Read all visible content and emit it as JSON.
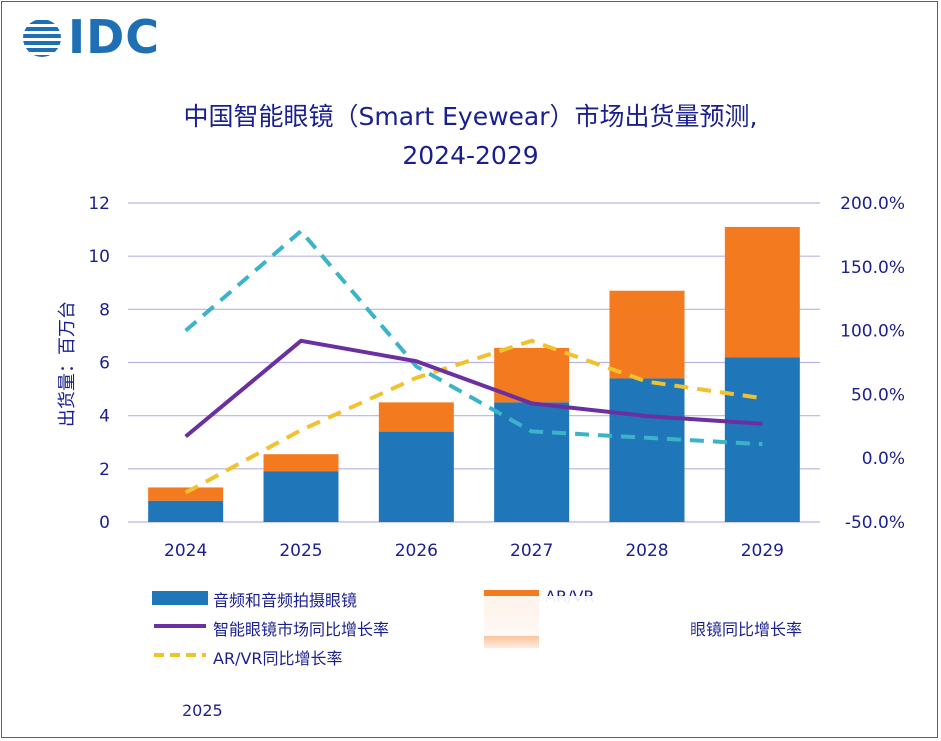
{
  "logo": {
    "text": "IDC"
  },
  "title": {
    "line1": "中国智能眼镜（Smart Eyewear）市场出货量预测,",
    "line2": "2024-2029"
  },
  "legend": {
    "audio": "音频和音频拍摄眼镜",
    "arvr": "AR/VR",
    "smart_yoy": "智能眼镜市场同比增长率",
    "audio_yoy_fragment": "眼镜同比增长率",
    "arvr_yoy": "AR/VR同比增长率"
  },
  "source": {
    "year": "2025"
  },
  "colors": {
    "audio": "#1f77b9",
    "arvr": "#f47a1f",
    "smart_yoy": "#6b2fa0",
    "audio_yoy": "#3bb3c9",
    "arvr_yoy": "#f2c12e",
    "grid": "#b9b3e6",
    "text": "#1a1f8f"
  },
  "chart_data": {
    "type": "bar",
    "categories": [
      "2024",
      "2025",
      "2026",
      "2027",
      "2028",
      "2029"
    ],
    "series": [
      {
        "name": "音频和音频拍摄眼镜",
        "kind": "stacked-bar",
        "axis": "left",
        "values": [
          0.8,
          1.9,
          3.4,
          4.5,
          5.4,
          6.2
        ]
      },
      {
        "name": "AR/VR",
        "kind": "stacked-bar",
        "axis": "left",
        "values": [
          0.5,
          0.65,
          1.1,
          2.05,
          3.3,
          4.9
        ]
      },
      {
        "name": "智能眼镜市场同比增长率",
        "kind": "line",
        "axis": "right",
        "values": [
          17,
          92,
          76,
          43,
          33,
          27
        ]
      },
      {
        "name": "",
        "kind": "dashed-line",
        "axis": "right",
        "values": [
          100,
          178,
          72,
          21,
          16,
          11
        ]
      },
      {
        "name": "AR/VR同比增长率",
        "kind": "dashed-line",
        "axis": "right",
        "values": [
          -27,
          22,
          63,
          92,
          60,
          47
        ]
      }
    ],
    "ylabel": "出货量：百万台",
    "ylim": [
      0,
      12
    ],
    "yticks": [
      "0",
      "2",
      "4",
      "6",
      "8",
      "10",
      "12"
    ],
    "y2lim": [
      -50,
      200
    ],
    "y2ticks": [
      "-50.0%",
      "0.0%",
      "50.0%",
      "100.0%",
      "150.0%",
      "200.0%"
    ],
    "grid": true,
    "legend_position": "bottom"
  }
}
